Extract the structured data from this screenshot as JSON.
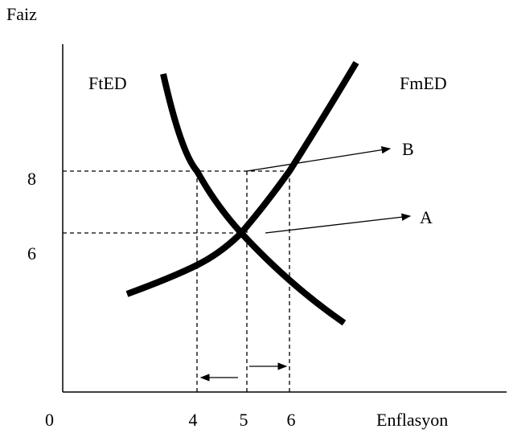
{
  "axes": {
    "y_label": "Faiz",
    "x_label": "Enflasyon",
    "origin": "0"
  },
  "y_ticks": [
    "8",
    "6"
  ],
  "x_ticks": [
    "4",
    "5",
    "6"
  ],
  "curves": {
    "left": "FtED",
    "right": "FmED"
  },
  "points": {
    "upper": "B",
    "lower": "A"
  }
}
